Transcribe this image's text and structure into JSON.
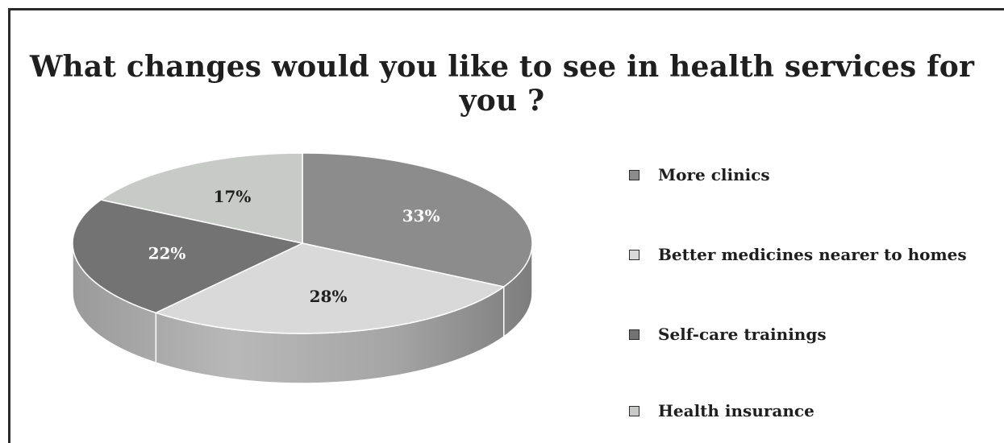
{
  "chart_data": {
    "type": "pie",
    "title": "What changes would you like to see in health services for you ?",
    "categories": [
      "More clinics",
      "Better medicines nearer to homes",
      "Self-care trainings",
      "Health insurance"
    ],
    "values": [
      33,
      28,
      22,
      17
    ],
    "value_labels": [
      "33%",
      "28%",
      "22%",
      "17%"
    ],
    "colors": [
      "#8c8c8c",
      "#d9d9d9",
      "#737373",
      "#c8cac8"
    ],
    "label_colors": [
      "#ffffff",
      "#1f1f1f",
      "#ffffff",
      "#1f1f1f"
    ],
    "style": "3d",
    "legend_position": "right"
  }
}
